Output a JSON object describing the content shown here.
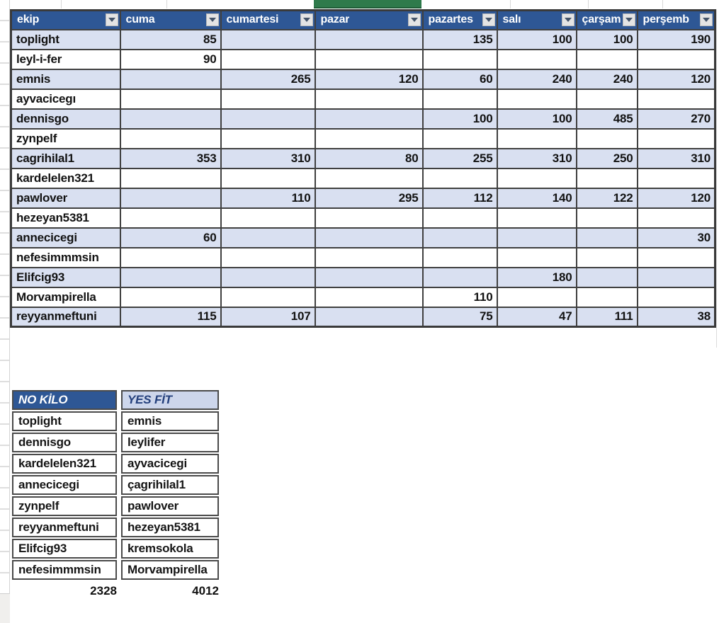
{
  "colors": {
    "header_bg": "#2e5795",
    "banded_row_bg": "#d9e0f1",
    "table_border": "#404040",
    "selected_cell_green": "#2e7a4b",
    "no_kilo_header_bg": "#2e5795",
    "no_kilo_header_text": "#ffffff",
    "yes_fit_header_bg": "#cdd6eb",
    "yes_fit_header_text": "#24407c",
    "dropdown_bg": "#e4e4e4",
    "dropdown_arrow": "#44546a"
  },
  "table1": {
    "columns": [
      "ekip",
      "cuma",
      "cumartesi",
      "pazar",
      "pazartes",
      "salı",
      "çarşam",
      "perşemb"
    ],
    "rows": [
      {
        "name": "toplight",
        "values": [
          "85",
          "",
          "",
          "135",
          "100",
          "100",
          "190"
        ]
      },
      {
        "name": "leyl-i-fer",
        "values": [
          "90",
          "",
          "",
          "",
          "",
          "",
          ""
        ]
      },
      {
        "name": "emnis",
        "values": [
          "",
          "265",
          "120",
          "60",
          "240",
          "240",
          "120"
        ]
      },
      {
        "name": "ayvacicegı",
        "values": [
          "",
          "",
          "",
          "",
          "",
          "",
          ""
        ]
      },
      {
        "name": "dennisgo",
        "values": [
          "",
          "",
          "",
          "100",
          "100",
          "485",
          "270"
        ]
      },
      {
        "name": "zynpelf",
        "values": [
          "",
          "",
          "",
          "",
          "",
          "",
          ""
        ]
      },
      {
        "name": "cagrihilal1",
        "values": [
          "353",
          "310",
          "80",
          "255",
          "310",
          "250",
          "310"
        ]
      },
      {
        "name": "kardelelen321",
        "values": [
          "",
          "",
          "",
          "",
          "",
          "",
          ""
        ]
      },
      {
        "name": "pawlover",
        "values": [
          "",
          "110",
          "295",
          "112",
          "140",
          "122",
          "120"
        ]
      },
      {
        "name": "hezeyan5381",
        "values": [
          "",
          "",
          "",
          "",
          "",
          "",
          ""
        ]
      },
      {
        "name": "annecicegi",
        "values": [
          "60",
          "",
          "",
          "",
          "",
          "",
          "30"
        ]
      },
      {
        "name": "nefesimmmsin",
        "values": [
          "",
          "",
          "",
          "",
          "",
          "",
          ""
        ]
      },
      {
        "name": "Elifcig93",
        "values": [
          "",
          "",
          "",
          "",
          "180",
          "",
          ""
        ]
      },
      {
        "name": "Morvampirella",
        "values": [
          "",
          "",
          "",
          "110",
          "",
          "",
          ""
        ]
      },
      {
        "name": "reyyanmeftuni",
        "values": [
          "115",
          "107",
          "",
          "75",
          "47",
          "111",
          "38"
        ]
      }
    ]
  },
  "table2": {
    "headers": [
      "NO KİLO",
      "YES FİT"
    ],
    "rows": [
      [
        "toplight",
        "emnis"
      ],
      [
        "dennisgo",
        "leylifer"
      ],
      [
        "kardelelen321",
        "ayvacicegi"
      ],
      [
        "annecicegi",
        "çagrihilal1"
      ],
      [
        "zynpelf",
        "pawlover"
      ],
      [
        "reyyanmeftuni",
        "hezeyan5381"
      ],
      [
        "Elifcig93",
        "kremsokola"
      ],
      [
        "nefesimmmsin",
        "Morvampirella"
      ]
    ],
    "totals": [
      "2328",
      "4012"
    ]
  }
}
